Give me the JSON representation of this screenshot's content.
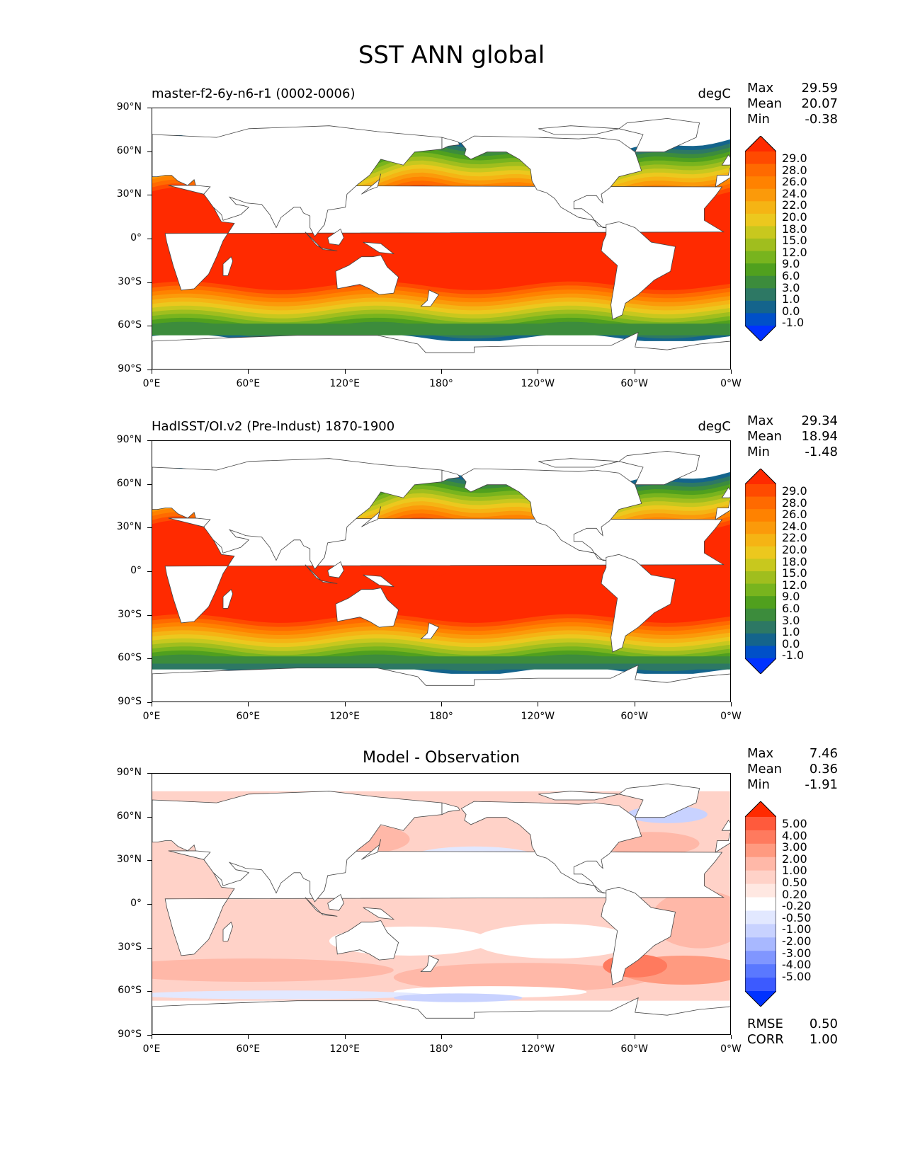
{
  "title": "SST ANN global",
  "panels": [
    {
      "title_left": "master-f2-6y-n6-r1 (0002-0006)",
      "title_right": "degC",
      "title_center": "",
      "stats": [
        {
          "label": "Max",
          "value": "29.59"
        },
        {
          "label": "Mean",
          "value": "20.07"
        },
        {
          "label": "Min",
          "value": "-0.38"
        }
      ],
      "colorbar_labels": [
        "29.0",
        "28.0",
        "26.0",
        "24.0",
        "22.0",
        "20.0",
        "18.0",
        "15.0",
        "12.0",
        "9.0",
        "6.0",
        "3.0",
        "1.0",
        "0.0",
        "-1.0"
      ],
      "colorbar_colors": [
        "#ff2a00",
        "#ff4a00",
        "#ff6a00",
        "#ff8200",
        "#fb9a0a",
        "#f5b414",
        "#ecc81e",
        "#c8c81e",
        "#a0be1e",
        "#78b41e",
        "#50a01e",
        "#3c8c3c",
        "#2d7864",
        "#14648c",
        "#0050c8",
        "#0032ff"
      ],
      "stats_bottom": []
    },
    {
      "title_left": "HadISST/OI.v2 (Pre-Indust) 1870-1900",
      "title_right": "degC",
      "title_center": "",
      "stats": [
        {
          "label": "Max",
          "value": "29.34"
        },
        {
          "label": "Mean",
          "value": "18.94"
        },
        {
          "label": "Min",
          "value": "-1.48"
        }
      ],
      "colorbar_labels": [
        "29.0",
        "28.0",
        "26.0",
        "24.0",
        "22.0",
        "20.0",
        "18.0",
        "15.0",
        "12.0",
        "9.0",
        "6.0",
        "3.0",
        "1.0",
        "0.0",
        "-1.0"
      ],
      "colorbar_colors": [
        "#ff2a00",
        "#ff4a00",
        "#ff6a00",
        "#ff8200",
        "#fb9a0a",
        "#f5b414",
        "#ecc81e",
        "#c8c81e",
        "#a0be1e",
        "#78b41e",
        "#50a01e",
        "#3c8c3c",
        "#2d7864",
        "#14648c",
        "#0050c8",
        "#0032ff"
      ],
      "stats_bottom": []
    },
    {
      "title_left": "",
      "title_right": "",
      "title_center": "Model - Observation",
      "stats": [
        {
          "label": "Max",
          "value": "7.46"
        },
        {
          "label": "Mean",
          "value": "0.36"
        },
        {
          "label": "Min",
          "value": "-1.91"
        }
      ],
      "colorbar_labels": [
        "5.00",
        "4.00",
        "3.00",
        "2.00",
        "1.00",
        "0.50",
        "0.20",
        "-0.20",
        "-0.50",
        "-1.00",
        "-2.00",
        "-3.00",
        "-4.00",
        "-5.00"
      ],
      "colorbar_colors": [
        "#ff2a00",
        "#ff5a3c",
        "#ff7a5e",
        "#ff9a80",
        "#ffb8a8",
        "#ffd2c8",
        "#ffe8e2",
        "#ffffff",
        "#e2e8ff",
        "#c8d2ff",
        "#a8b8ff",
        "#8096ff",
        "#5a78ff",
        "#3c5aff",
        "#0032ff"
      ],
      "stats_bottom": [
        {
          "label": "RMSE",
          "value": "0.50"
        },
        {
          "label": "CORR",
          "value": "1.00"
        }
      ]
    }
  ],
  "axes": {
    "lat_ticks": [
      "90°N",
      "60°N",
      "30°N",
      "0°",
      "30°S",
      "60°S",
      "90°S"
    ],
    "lon_ticks": [
      "0°E",
      "60°E",
      "120°E",
      "180°",
      "120°W",
      "60°W",
      "0°W"
    ]
  },
  "chart_data": [
    {
      "type": "heatmap",
      "title": "master-f2-6y-n6-r1 (0002-0006)",
      "units": "degC",
      "xlabel": "",
      "ylabel": "",
      "x_ticks": [
        "0°E",
        "60°E",
        "120°E",
        "180°",
        "120°W",
        "60°W",
        "0°W"
      ],
      "y_ticks": [
        "90°N",
        "60°N",
        "30°N",
        "0°",
        "30°S",
        "60°S",
        "90°S"
      ],
      "stats": {
        "max": 29.59,
        "mean": 20.07,
        "min": -0.38
      },
      "levels": [
        -1.0,
        0.0,
        1.0,
        3.0,
        6.0,
        9.0,
        12.0,
        15.0,
        18.0,
        20.0,
        22.0,
        24.0,
        26.0,
        28.0,
        29.0
      ]
    },
    {
      "type": "heatmap",
      "title": "HadISST/OI.v2 (Pre-Indust) 1870-1900",
      "units": "degC",
      "x_ticks": [
        "0°E",
        "60°E",
        "120°E",
        "180°",
        "120°W",
        "60°W",
        "0°W"
      ],
      "y_ticks": [
        "90°N",
        "60°N",
        "30°N",
        "0°",
        "30°S",
        "60°S",
        "90°S"
      ],
      "stats": {
        "max": 29.34,
        "mean": 18.94,
        "min": -1.48
      },
      "levels": [
        -1.0,
        0.0,
        1.0,
        3.0,
        6.0,
        9.0,
        12.0,
        15.0,
        18.0,
        20.0,
        22.0,
        24.0,
        26.0,
        28.0,
        29.0
      ]
    },
    {
      "type": "heatmap",
      "title": "Model - Observation",
      "x_ticks": [
        "0°E",
        "60°E",
        "120°E",
        "180°",
        "120°W",
        "60°W",
        "0°W"
      ],
      "y_ticks": [
        "90°N",
        "60°N",
        "30°N",
        "0°",
        "30°S",
        "60°S",
        "90°S"
      ],
      "stats": {
        "max": 7.46,
        "mean": 0.36,
        "min": -1.91,
        "rmse": 0.5,
        "corr": 1.0
      },
      "levels": [
        -5.0,
        -4.0,
        -3.0,
        -2.0,
        -1.0,
        -0.5,
        -0.2,
        0.2,
        0.5,
        1.0,
        2.0,
        3.0,
        4.0,
        5.0
      ]
    }
  ]
}
